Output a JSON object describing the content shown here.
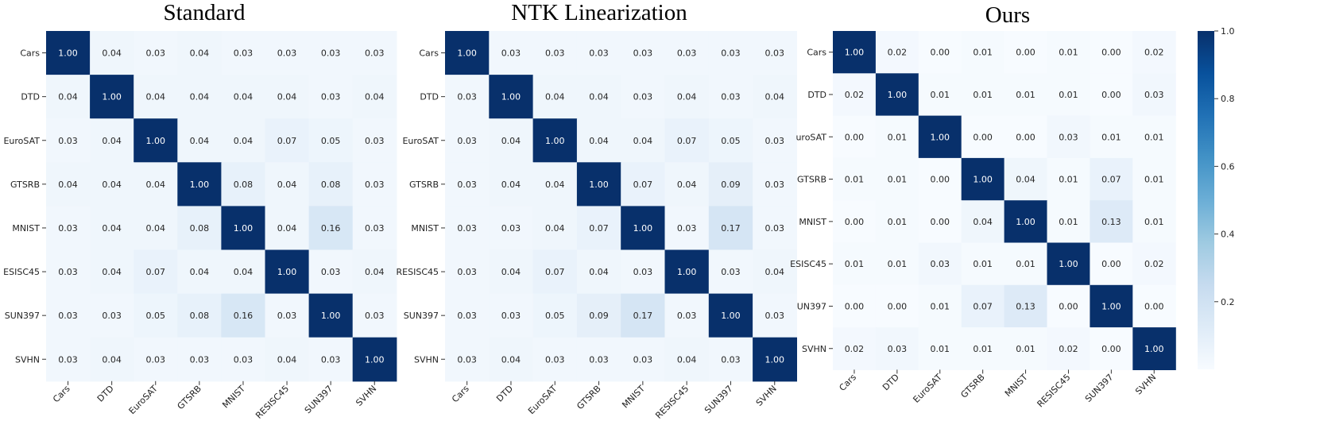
{
  "chart_data": [
    {
      "type": "heatmap",
      "title": "Standard",
      "categories": [
        "Cars",
        "DTD",
        "EuroSAT",
        "GTSRB",
        "MNIST",
        "RESISC45",
        "SUN397",
        "SVHN"
      ],
      "row_labels": [
        "Cars",
        "DTD",
        "EuroSAT",
        "GTSRB",
        "MNIST",
        "ESISC45",
        "SUN397",
        "SVHN"
      ],
      "values": [
        [
          "1.00",
          "0.04",
          "0.03",
          "0.04",
          "0.03",
          "0.03",
          "0.03",
          "0.03"
        ],
        [
          "0.04",
          "1.00",
          "0.04",
          "0.04",
          "0.04",
          "0.04",
          "0.03",
          "0.04"
        ],
        [
          "0.03",
          "0.04",
          "1.00",
          "0.04",
          "0.04",
          "0.07",
          "0.05",
          "0.03"
        ],
        [
          "0.04",
          "0.04",
          "0.04",
          "1.00",
          "0.08",
          "0.04",
          "0.08",
          "0.03"
        ],
        [
          "0.03",
          "0.04",
          "0.04",
          "0.08",
          "1.00",
          "0.04",
          "0.16",
          "0.03"
        ],
        [
          "0.03",
          "0.04",
          "0.07",
          "0.04",
          "0.04",
          "1.00",
          "0.03",
          "0.04"
        ],
        [
          "0.03",
          "0.03",
          "0.05",
          "0.08",
          "0.16",
          "0.03",
          "1.00",
          "0.03"
        ],
        [
          "0.03",
          "0.04",
          "0.03",
          "0.03",
          "0.03",
          "0.04",
          "0.03",
          "1.00"
        ]
      ]
    },
    {
      "type": "heatmap",
      "title": "NTK Linearization",
      "categories": [
        "Cars",
        "DTD",
        "EuroSAT",
        "GTSRB",
        "MNIST",
        "RESISC45",
        "SUN397",
        "SVHN"
      ],
      "row_labels": [
        "Cars",
        "DTD",
        "EuroSAT",
        "GTSRB",
        "MNIST",
        "RESISC45",
        "SUN397",
        "SVHN"
      ],
      "values": [
        [
          "1.00",
          "0.03",
          "0.03",
          "0.03",
          "0.03",
          "0.03",
          "0.03",
          "0.03"
        ],
        [
          "0.03",
          "1.00",
          "0.04",
          "0.04",
          "0.03",
          "0.04",
          "0.03",
          "0.04"
        ],
        [
          "0.03",
          "0.04",
          "1.00",
          "0.04",
          "0.04",
          "0.07",
          "0.05",
          "0.03"
        ],
        [
          "0.03",
          "0.04",
          "0.04",
          "1.00",
          "0.07",
          "0.04",
          "0.09",
          "0.03"
        ],
        [
          "0.03",
          "0.03",
          "0.04",
          "0.07",
          "1.00",
          "0.03",
          "0.17",
          "0.03"
        ],
        [
          "0.03",
          "0.04",
          "0.07",
          "0.04",
          "0.03",
          "1.00",
          "0.03",
          "0.04"
        ],
        [
          "0.03",
          "0.03",
          "0.05",
          "0.09",
          "0.17",
          "0.03",
          "1.00",
          "0.03"
        ],
        [
          "0.03",
          "0.04",
          "0.03",
          "0.03",
          "0.03",
          "0.04",
          "0.03",
          "1.00"
        ]
      ]
    },
    {
      "type": "heatmap",
      "title": "Ours",
      "categories": [
        "Cars",
        "DTD",
        "EuroSAT",
        "GTSRB",
        "MNIST",
        "RESISC45",
        "SUN397",
        "SVHN"
      ],
      "row_labels": [
        "Cars",
        "DTD",
        "uroSAT",
        "GTSRB",
        "MNIST",
        "ESISC45",
        "UN397",
        "SVHN"
      ],
      "values": [
        [
          "1.00",
          "0.02",
          "0.00",
          "0.01",
          "0.00",
          "0.01",
          "0.00",
          "0.02"
        ],
        [
          "0.02",
          "1.00",
          "0.01",
          "0.01",
          "0.01",
          "0.01",
          "0.00",
          "0.03"
        ],
        [
          "0.00",
          "0.01",
          "1.00",
          "0.00",
          "0.00",
          "0.03",
          "0.01",
          "0.01"
        ],
        [
          "0.01",
          "0.01",
          "0.00",
          "1.00",
          "0.04",
          "0.01",
          "0.07",
          "0.01"
        ],
        [
          "0.00",
          "0.01",
          "0.00",
          "0.04",
          "1.00",
          "0.01",
          "0.13",
          "0.01"
        ],
        [
          "0.01",
          "0.01",
          "0.03",
          "0.01",
          "0.01",
          "1.00",
          "0.00",
          "0.02"
        ],
        [
          "0.00",
          "0.00",
          "0.01",
          "0.07",
          "0.13",
          "0.00",
          "1.00",
          "0.00"
        ],
        [
          "0.02",
          "0.03",
          "0.01",
          "0.01",
          "0.01",
          "0.02",
          "0.00",
          "1.00"
        ]
      ]
    }
  ],
  "colorbar": {
    "range": [
      0,
      1
    ],
    "ticks": [
      0.2,
      0.4,
      0.6,
      0.8,
      1.0
    ],
    "tick_labels": [
      "0.2",
      "0.4",
      "0.6",
      "0.8",
      "1.0"
    ],
    "colors": [
      "#f7fbff",
      "#deebf7",
      "#c6dbef",
      "#9ecae1",
      "#6baed6",
      "#4292c6",
      "#2171b5",
      "#08519c",
      "#08306b"
    ]
  }
}
